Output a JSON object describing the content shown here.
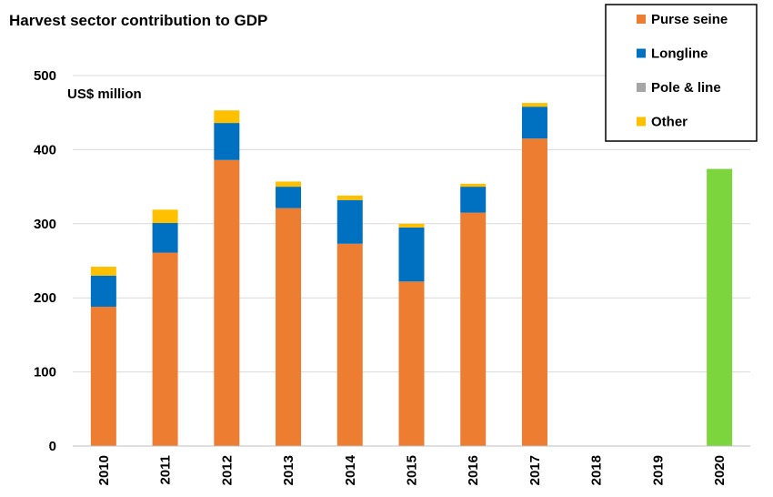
{
  "chart_data": {
    "type": "bar",
    "stacked": true,
    "title": "Harvest sector contribution to GDP",
    "unit_label": "US$ million",
    "xlabel": "",
    "ylabel": "",
    "ylim": [
      0,
      500
    ],
    "yticks": [
      0,
      100,
      200,
      300,
      400,
      500
    ],
    "grid": true,
    "legend_position": "top-right",
    "categories": [
      "2010",
      "2011",
      "2012",
      "2013",
      "2014",
      "2015",
      "2016",
      "2017",
      "2018",
      "2019",
      "2020"
    ],
    "series": [
      {
        "name": "Purse seine",
        "color": "#ED7D31",
        "values": [
          188,
          261,
          386,
          321,
          273,
          222,
          315,
          415,
          0,
          0,
          0
        ]
      },
      {
        "name": "Longline",
        "color": "#0070C0",
        "values": [
          42,
          40,
          50,
          29,
          59,
          73,
          35,
          43,
          0,
          0,
          0
        ]
      },
      {
        "name": "Pole & line",
        "color": "#A5A5A5",
        "values": [
          0,
          0,
          0,
          0,
          0,
          0,
          0,
          0,
          0,
          0,
          0
        ]
      },
      {
        "name": "Other",
        "color": "#FFC000",
        "values": [
          12,
          18,
          17,
          7,
          6,
          5,
          4,
          5,
          0,
          0,
          0
        ]
      }
    ],
    "projection": {
      "category": "2020",
      "value": 374,
      "color": "#7CD53C"
    }
  }
}
